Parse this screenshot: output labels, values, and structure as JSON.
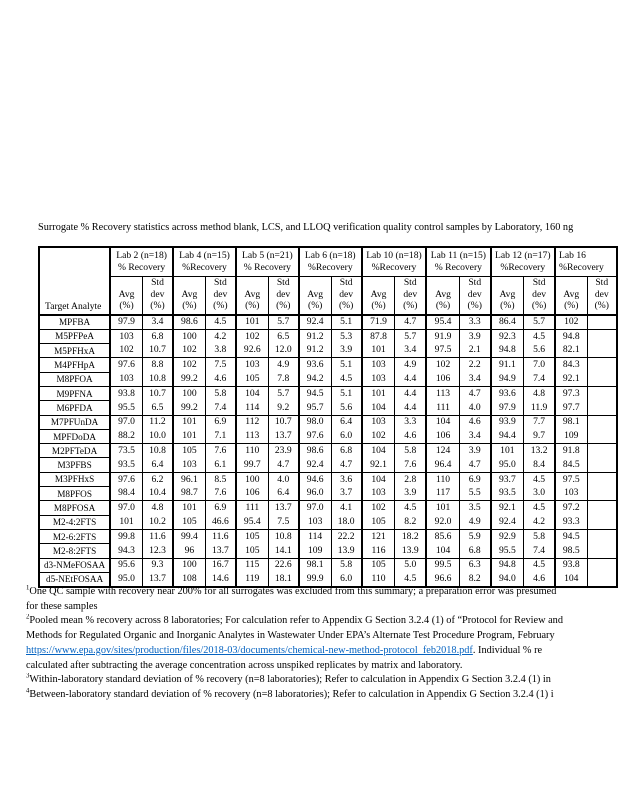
{
  "page": {
    "title": "Surrogate % Recovery statistics across method blank, LCS, and LLOQ verification quality control samples by Laboratory, 160 ng"
  },
  "table": {
    "corner_label": "Target Analyte",
    "avg_header_lines": [
      "Avg",
      "(%)"
    ],
    "std_header_lines": [
      "Std",
      "dev",
      "(%)"
    ],
    "labs": [
      {
        "name": "Lab 2 (n=18)",
        "recovery": "% Recovery"
      },
      {
        "name": "Lab 4 (n=15)",
        "recovery": "%Recovery"
      },
      {
        "name": "Lab 5 (n=21)",
        "recovery": "% Recovery"
      },
      {
        "name": "Lab 6 (n=18)",
        "recovery": "%Recovery"
      },
      {
        "name": "Lab 10 (n=18)",
        "recovery": "%Recovery"
      },
      {
        "name": "Lab 11 (n=15)",
        "recovery": "% Recovery"
      },
      {
        "name": "Lab 12 (n=17)",
        "recovery": "%Recovery"
      },
      {
        "name": "Lab 16",
        "recovery": "%Recovery"
      }
    ],
    "group_end_rows": [
      0,
      2,
      4,
      6,
      8,
      10,
      12,
      14,
      16,
      18
    ],
    "rows": [
      {
        "analyte": "MPFBA",
        "values": [
          "97.9",
          "3.4",
          "98.6",
          "4.5",
          "101",
          "5.7",
          "92.4",
          "5.1",
          "71.9",
          "4.7",
          "95.4",
          "3.3",
          "86.4",
          "5.7",
          "102",
          ""
        ]
      },
      {
        "analyte": "M5PFPeA",
        "values": [
          "103",
          "6.8",
          "100",
          "4.2",
          "102",
          "6.5",
          "91.2",
          "5.3",
          "87.8",
          "5.7",
          "91.9",
          "3.9",
          "92.3",
          "4.5",
          "94.8",
          ""
        ]
      },
      {
        "analyte": "M5PFHxA",
        "values": [
          "102",
          "10.7",
          "102",
          "3.8",
          "92.6",
          "12.0",
          "91.2",
          "3.9",
          "101",
          "3.4",
          "97.5",
          "2.1",
          "94.8",
          "5.6",
          "82.1",
          ""
        ]
      },
      {
        "analyte": "M4PFHpA",
        "values": [
          "97.6",
          "8.8",
          "102",
          "7.5",
          "103",
          "4.9",
          "93.6",
          "5.1",
          "103",
          "4.9",
          "102",
          "2.2",
          "91.1",
          "7.0",
          "84.3",
          ""
        ]
      },
      {
        "analyte": "M8PFOA",
        "values": [
          "103",
          "10.8",
          "99.2",
          "4.6",
          "105",
          "7.8",
          "94.2",
          "4.5",
          "103",
          "4.4",
          "106",
          "3.4",
          "94.9",
          "7.4",
          "92.1",
          ""
        ]
      },
      {
        "analyte": "M9PFNA",
        "values": [
          "93.8",
          "10.7",
          "100",
          "5.8",
          "104",
          "5.7",
          "94.5",
          "5.1",
          "101",
          "4.4",
          "113",
          "4.7",
          "93.6",
          "4.8",
          "97.3",
          ""
        ]
      },
      {
        "analyte": "M6PFDA",
        "values": [
          "95.5",
          "6.5",
          "99.2",
          "7.4",
          "114",
          "9.2",
          "95.7",
          "5.6",
          "104",
          "4.4",
          "111",
          "4.0",
          "97.9",
          "11.9",
          "97.7",
          ""
        ]
      },
      {
        "analyte": "M7PFUnDA",
        "values": [
          "97.0",
          "11.2",
          "101",
          "6.9",
          "112",
          "10.7",
          "98.0",
          "6.4",
          "103",
          "3.3",
          "104",
          "4.6",
          "93.9",
          "7.7",
          "98.1",
          ""
        ]
      },
      {
        "analyte": "MPFDoDA",
        "values": [
          "88.2",
          "10.0",
          "101",
          "7.1",
          "113",
          "13.7",
          "97.6",
          "6.0",
          "102",
          "4.6",
          "106",
          "3.4",
          "94.4",
          "9.7",
          "109",
          ""
        ]
      },
      {
        "analyte": "M2PFTeDA",
        "values": [
          "73.5",
          "10.8",
          "105",
          "7.6",
          "110",
          "23.9",
          "98.6",
          "6.8",
          "104",
          "5.8",
          "124",
          "3.9",
          "101",
          "13.2",
          "91.8",
          ""
        ]
      },
      {
        "analyte": "M3PFBS",
        "values": [
          "93.5",
          "6.4",
          "103",
          "6.1",
          "99.7",
          "4.7",
          "92.4",
          "4.7",
          "92.1",
          "7.6",
          "96.4",
          "4.7",
          "95.0",
          "8.4",
          "84.5",
          ""
        ]
      },
      {
        "analyte": "M3PFHxS",
        "values": [
          "97.6",
          "6.2",
          "96.1",
          "8.5",
          "100",
          "4.0",
          "94.6",
          "3.6",
          "104",
          "2.8",
          "110",
          "6.9",
          "93.7",
          "4.5",
          "97.5",
          ""
        ]
      },
      {
        "analyte": "M8PFOS",
        "values": [
          "98.4",
          "10.4",
          "98.7",
          "7.6",
          "106",
          "6.4",
          "96.0",
          "3.7",
          "103",
          "3.9",
          "117",
          "5.5",
          "93.5",
          "3.0",
          "103",
          ""
        ]
      },
      {
        "analyte": "M8PFOSA",
        "values": [
          "97.0",
          "4.8",
          "101",
          "6.9",
          "111",
          "13.7",
          "97.0",
          "4.1",
          "102",
          "4.5",
          "101",
          "3.5",
          "92.1",
          "4.5",
          "97.2",
          ""
        ]
      },
      {
        "analyte": "M2-4:2FTS",
        "values": [
          "101",
          "10.2",
          "105",
          "46.6",
          "95.4",
          "7.5",
          "103",
          "18.0",
          "105",
          "8.2",
          "92.0",
          "4.9",
          "92.4",
          "4.2",
          "93.3",
          ""
        ]
      },
      {
        "analyte": "M2-6:2FTS",
        "values": [
          "99.8",
          "11.6",
          "99.4",
          "11.6",
          "105",
          "10.8",
          "114",
          "22.2",
          "121",
          "18.2",
          "85.6",
          "5.9",
          "92.9",
          "5.8",
          "94.5",
          ""
        ]
      },
      {
        "analyte": "M2-8:2FTS",
        "values": [
          "94.3",
          "12.3",
          "96",
          "13.7",
          "105",
          "14.1",
          "109",
          "13.9",
          "116",
          "13.9",
          "104",
          "6.8",
          "95.5",
          "7.4",
          "98.5",
          ""
        ]
      },
      {
        "analyte": "d3-NMeFOSAA",
        "values": [
          "95.6",
          "9.3",
          "100",
          "16.7",
          "115",
          "22.6",
          "98.1",
          "5.8",
          "105",
          "5.0",
          "99.5",
          "6.3",
          "94.8",
          "4.5",
          "93.8",
          ""
        ]
      },
      {
        "analyte": "d5-NEtFOSAA",
        "values": [
          "95.0",
          "13.7",
          "108",
          "14.6",
          "119",
          "18.1",
          "99.9",
          "6.0",
          "110",
          "4.5",
          "96.6",
          "8.2",
          "94.0",
          "4.6",
          "104",
          ""
        ]
      }
    ]
  },
  "footnotes": [
    {
      "sup": "1",
      "text": "One QC sample with recovery near 200% for all surrogates was excluded from this summary; a preparation error was presumed"
    },
    {
      "text": "for these samples"
    },
    {
      "sup": "2",
      "text": "Pooled mean % recovery across 8 laboratories; For calculation refer to Appendix G Section 3.2.4 (1) of “Protocol for Review and"
    },
    {
      "text": "Methods for Regulated Organic and Inorganic Analytes in Wastewater Under EPA’s Alternate Test Procedure Program, February"
    },
    {
      "link": "https://www.epa.gov/sites/production/files/2018-03/documents/chemical-new-method-protocol_feb2018.pdf",
      "text": ". Individual % re"
    },
    {
      "text": "calculated after subtracting the average concentration across unspiked replicates by matrix and laboratory."
    },
    {
      "sup": "3",
      "text": "Within-laboratory standard deviation of % recovery (n=8 laboratories); Refer to calculation in Appendix G Section 3.2.4 (1) in"
    },
    {
      "sup": "4",
      "text": "Between-laboratory standard deviation of % recovery (n=8 laboratories); Refer to calculation in Appendix G Section 3.2.4 (1) i"
    }
  ]
}
